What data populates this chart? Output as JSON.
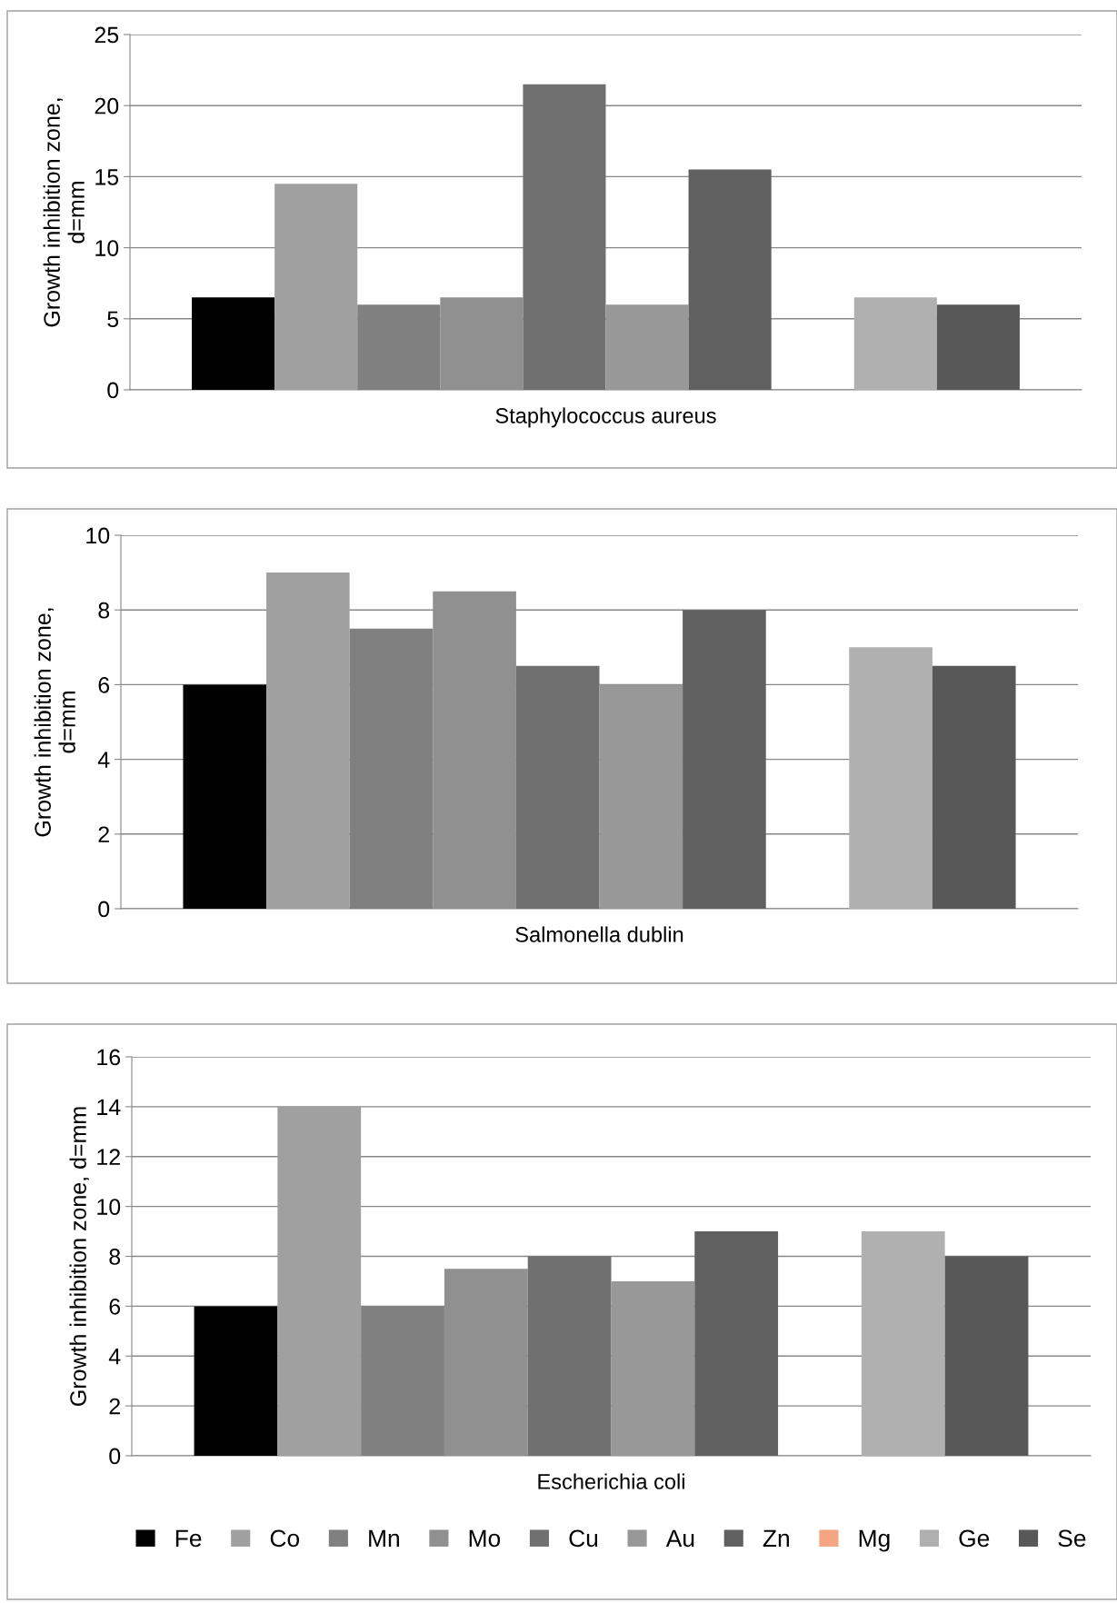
{
  "chart_data": [
    {
      "type": "bar",
      "ylabel": "Growth inhibition zone,\nd=mm",
      "categories": [
        "Staphylococcus aureus"
      ],
      "ylim": [
        0,
        25
      ],
      "yticks": [
        0,
        5,
        10,
        15,
        20,
        25
      ],
      "grid": "y",
      "legend": false,
      "series": [
        {
          "color": "#000000",
          "values": [
            6.5
          ]
        },
        {
          "color": "#a0a0a0",
          "values": [
            14.5
          ]
        },
        {
          "color": "#808080",
          "values": [
            6
          ]
        },
        {
          "color": "#909090",
          "values": [
            6.5
          ]
        },
        {
          "color": "#707070",
          "values": [
            21.5
          ]
        },
        {
          "color": "#989898",
          "values": [
            6
          ]
        },
        {
          "color": "#606060",
          "values": [
            15.5
          ]
        },
        {
          "color": "#f4a582",
          "values": [
            null
          ]
        },
        {
          "color": "#b0b0b0",
          "values": [
            6.5
          ]
        },
        {
          "color": "#585858",
          "values": [
            6
          ]
        }
      ]
    },
    {
      "type": "bar",
      "ylabel": "Growth inhibition zone,\nd=mm",
      "categories": [
        "Salmonella dublin"
      ],
      "ylim": [
        0,
        10
      ],
      "yticks": [
        0,
        2,
        4,
        6,
        8,
        10
      ],
      "grid": "y",
      "legend": false,
      "series": [
        {
          "color": "#000000",
          "values": [
            6
          ]
        },
        {
          "color": "#a0a0a0",
          "values": [
            9
          ]
        },
        {
          "color": "#808080",
          "values": [
            7.5
          ]
        },
        {
          "color": "#909090",
          "values": [
            8.5
          ]
        },
        {
          "color": "#707070",
          "values": [
            6.5
          ]
        },
        {
          "color": "#989898",
          "values": [
            6
          ]
        },
        {
          "color": "#606060",
          "values": [
            8
          ]
        },
        {
          "color": "#f4a582",
          "values": [
            null
          ]
        },
        {
          "color": "#b0b0b0",
          "values": [
            7
          ]
        },
        {
          "color": "#585858",
          "values": [
            6.5
          ]
        }
      ]
    },
    {
      "type": "bar",
      "ylabel": "Growth inhibition zone, d=mm",
      "categories": [
        "Escherichia coli"
      ],
      "ylim": [
        0,
        16
      ],
      "yticks": [
        0,
        2,
        4,
        6,
        8,
        10,
        12,
        14,
        16
      ],
      "grid": "y",
      "legend": "bottom",
      "series": [
        {
          "name": "Fe",
          "color": "#000000",
          "values": [
            6
          ]
        },
        {
          "name": "Co",
          "color": "#a0a0a0",
          "values": [
            14
          ]
        },
        {
          "name": "Mn",
          "color": "#808080",
          "values": [
            6
          ]
        },
        {
          "name": "Mo",
          "color": "#909090",
          "values": [
            7.5
          ]
        },
        {
          "name": "Cu",
          "color": "#707070",
          "values": [
            8
          ]
        },
        {
          "name": "Au",
          "color": "#989898",
          "values": [
            7
          ]
        },
        {
          "name": "Zn",
          "color": "#606060",
          "values": [
            9
          ]
        },
        {
          "name": "Mg",
          "color": "#f4a582",
          "values": [
            null
          ]
        },
        {
          "name": "Ge",
          "color": "#b0b0b0",
          "values": [
            9
          ]
        },
        {
          "name": "Se",
          "color": "#585858",
          "values": [
            8
          ]
        }
      ]
    }
  ]
}
